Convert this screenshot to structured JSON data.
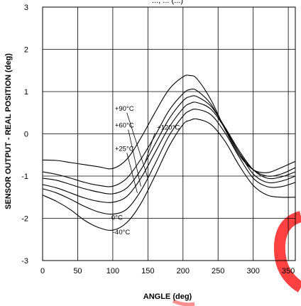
{
  "chart_data": {
    "type": "line",
    "title": "..., ... (...)",
    "xlabel": "ANGLE (deg)",
    "ylabel": "SENSOR OUTPUT - REAL POSITION (deg)",
    "xlim": [
      0,
      360
    ],
    "ylim": [
      -3,
      3
    ],
    "xticks": [
      0,
      50,
      100,
      150,
      200,
      250,
      300,
      350
    ],
    "yticks": [
      -3,
      -2,
      -1,
      0,
      1,
      2,
      3
    ],
    "grid": true,
    "line_color": "#000000",
    "watermark_color": "#ff2020",
    "x": [
      0,
      20,
      40,
      60,
      80,
      100,
      120,
      140,
      160,
      180,
      200,
      210,
      220,
      240,
      260,
      280,
      300,
      320,
      340,
      360
    ],
    "series": [
      {
        "name": "+120°C",
        "values": [
          -0.62,
          -0.63,
          -0.68,
          -0.73,
          -0.78,
          -0.82,
          -0.6,
          -0.1,
          0.5,
          1.05,
          1.35,
          1.38,
          1.3,
          0.8,
          0.1,
          -0.5,
          -0.85,
          -0.92,
          -0.8,
          -0.65
        ]
      },
      {
        "name": "+90°C",
        "values": [
          -0.9,
          -0.96,
          -1.05,
          -1.15,
          -1.22,
          -1.24,
          -1.05,
          -0.6,
          -0.05,
          0.55,
          0.95,
          1.05,
          1.02,
          0.7,
          0.12,
          -0.45,
          -0.85,
          -1.0,
          -0.95,
          -0.8
        ]
      },
      {
        "name": "+60°C",
        "values": [
          -1.05,
          -1.1,
          -1.2,
          -1.3,
          -1.38,
          -1.42,
          -1.28,
          -0.85,
          -0.25,
          0.35,
          0.78,
          0.88,
          0.88,
          0.65,
          0.15,
          -0.4,
          -0.85,
          -1.05,
          -1.02,
          -0.9
        ]
      },
      {
        "name": "+25°C",
        "values": [
          -1.2,
          -1.28,
          -1.4,
          -1.52,
          -1.6,
          -1.62,
          -1.48,
          -1.05,
          -0.45,
          0.15,
          0.6,
          0.72,
          0.74,
          0.58,
          0.12,
          -0.45,
          -0.95,
          -1.15,
          -1.12,
          -1.0
        ]
      },
      {
        "name": "0°C",
        "values": [
          -1.3,
          -1.4,
          -1.55,
          -1.72,
          -1.85,
          -1.9,
          -1.78,
          -1.35,
          -0.72,
          -0.05,
          0.42,
          0.55,
          0.58,
          0.45,
          0.02,
          -0.55,
          -1.05,
          -1.25,
          -1.25,
          -1.15
        ]
      },
      {
        "name": "-40°C",
        "values": [
          -1.45,
          -1.6,
          -1.8,
          -2.05,
          -2.22,
          -2.28,
          -2.1,
          -1.65,
          -1.0,
          -0.3,
          0.22,
          0.32,
          0.35,
          0.22,
          -0.18,
          -0.75,
          -1.22,
          -1.45,
          -1.5,
          -1.5
        ]
      }
    ],
    "annotations": [
      {
        "text": "+90°C",
        "x": 103,
        "y": 0.55
      },
      {
        "text": "+60°C",
        "x": 103,
        "y": 0.15
      },
      {
        "text": "+120°C",
        "x": 163,
        "y": 0.1
      },
      {
        "text": "+25°C",
        "x": 103,
        "y": -0.4
      },
      {
        "text": "0°C",
        "x": 98,
        "y": -2.03
      },
      {
        "text": "-40°C",
        "x": 100,
        "y": -2.38
      }
    ],
    "annotation_targets": [
      {
        "from": [
          120,
          0.5
        ],
        "to": [
          150,
          -1.05
        ]
      },
      {
        "from": [
          122,
          0.1
        ],
        "to": [
          140,
          -1.25
        ]
      },
      {
        "from": [
          160,
          0.02
        ],
        "to": [
          145,
          -0.72
        ]
      },
      {
        "from": [
          120,
          -0.45
        ],
        "to": [
          135,
          -1.4
        ]
      }
    ]
  }
}
